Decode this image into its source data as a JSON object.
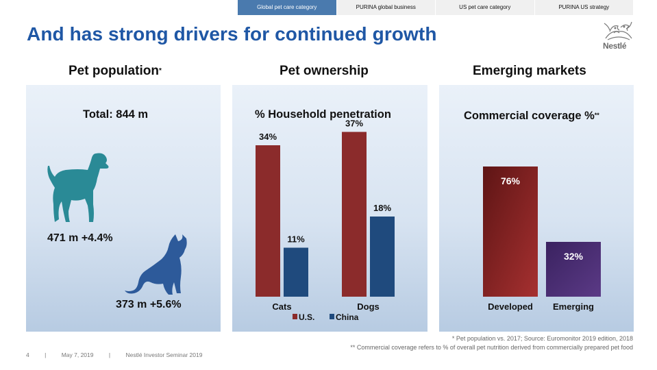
{
  "nav": {
    "tabs": [
      {
        "label": "Global pet care category",
        "active": true
      },
      {
        "label": "PURINA global business",
        "active": false
      },
      {
        "label": "US pet care category",
        "active": false
      },
      {
        "label": "PURINA US strategy",
        "active": false
      }
    ]
  },
  "slide": {
    "title": "And has strong drivers for continued growth",
    "logo_text": "Nestlé"
  },
  "columns": {
    "population": {
      "heading": "Pet population",
      "heading_mark": "*",
      "total": "Total: 844 m",
      "dog_stat": "471 m +4.4%",
      "cat_stat": "373 m +5.6%"
    },
    "ownership": {
      "heading": "Pet ownership",
      "subtitle": "% Household penetration"
    },
    "emerging": {
      "heading": "Emerging markets",
      "subtitle": "Commercial coverage %",
      "subtitle_mark": "**"
    }
  },
  "colors": {
    "red": "#8b2b2b",
    "blue": "#1f4a7d",
    "purple": "#4a2f6e",
    "teal": "#2a8a96",
    "navy": "#2d5a9a"
  },
  "chart_data": [
    {
      "type": "bar",
      "title": "% Household penetration",
      "categories": [
        "Cats",
        "Dogs"
      ],
      "series": [
        {
          "name": "U.S.",
          "values": [
            34,
            37
          ],
          "labels": [
            "34%",
            "37%"
          ]
        },
        {
          "name": "China",
          "values": [
            11,
            18
          ],
          "labels": [
            "11%",
            "18%"
          ]
        }
      ],
      "ylim": [
        0,
        40
      ],
      "legend": "bottom"
    },
    {
      "type": "bar",
      "title": "Commercial coverage %",
      "categories": [
        "Developed",
        "Emerging"
      ],
      "values": [
        76,
        32
      ],
      "labels": [
        "76%",
        "32%"
      ],
      "ylim": [
        0,
        80
      ]
    }
  ],
  "footnotes": [
    "* Pet population vs. 2017; Source: Euromonitor 2019 edition, 2018",
    "** Commercial coverage refers to % of overall pet nutrition derived from commercially prepared pet food"
  ],
  "footer": {
    "page": "4",
    "separator": "|",
    "date": "May 7, 2019",
    "event": "Nestlé Investor Seminar 2019"
  }
}
